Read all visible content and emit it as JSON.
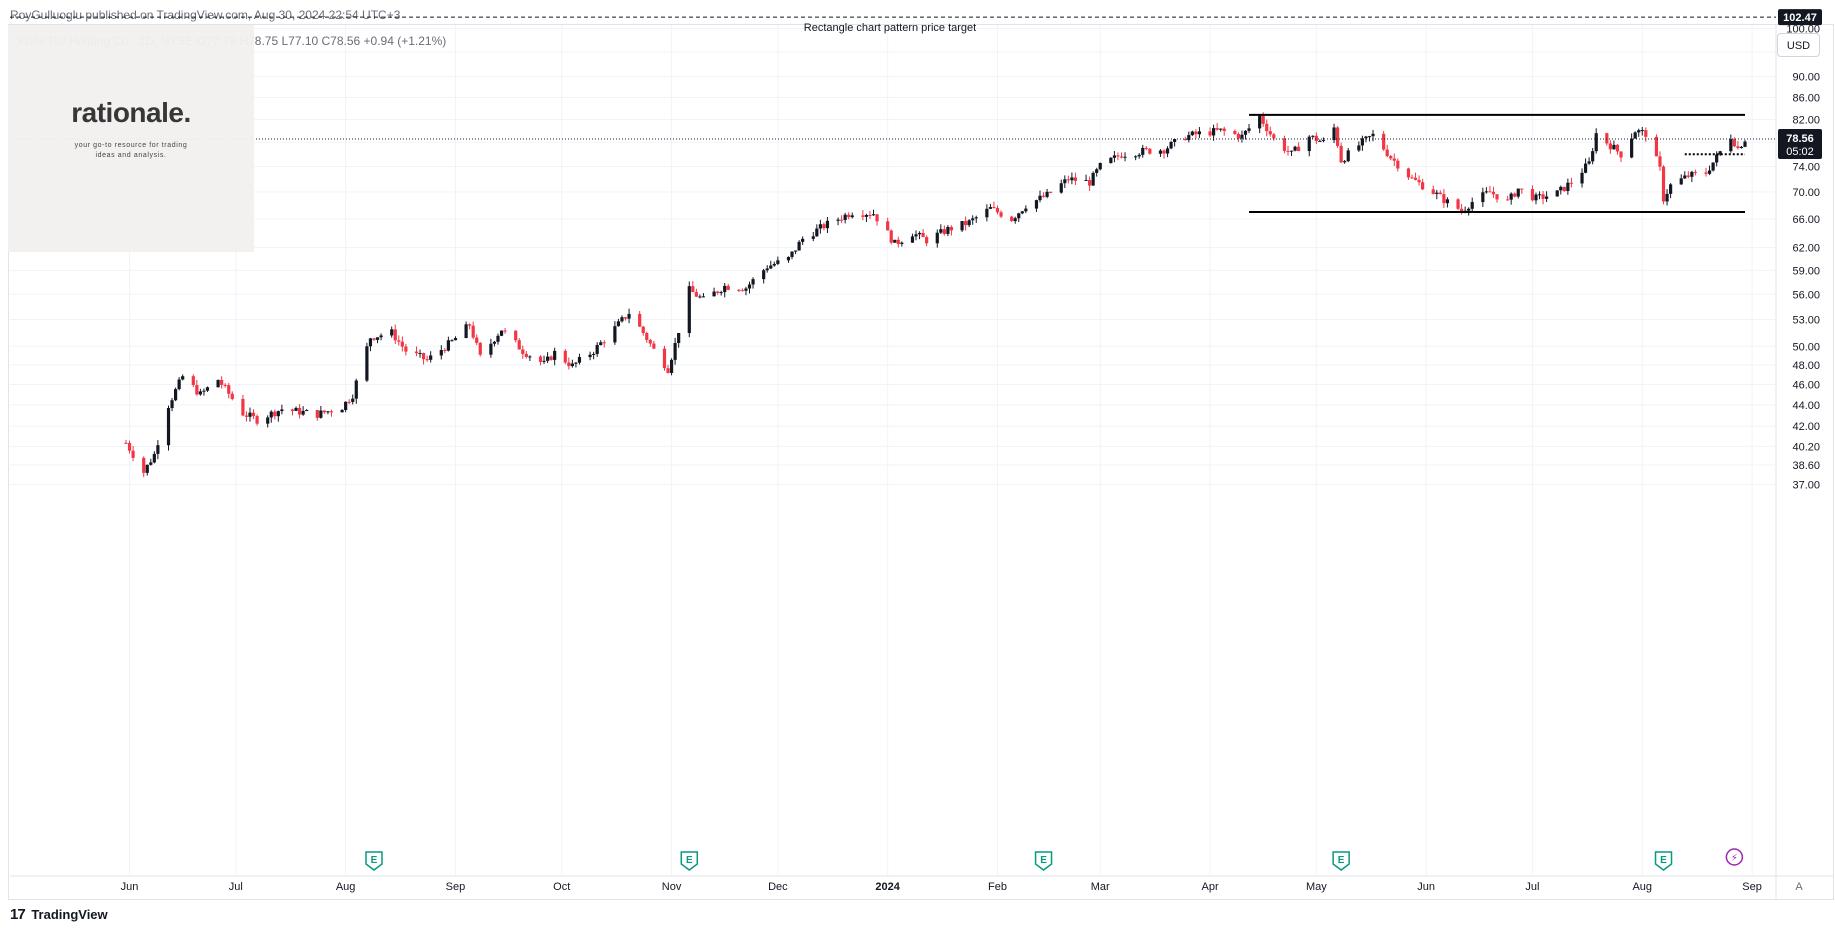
{
  "header": {
    "publisher": "RoyGulluoglu published on TradingView.com, Aug 30, 2024 22:54 UTC+3",
    "symbol_line": "Knife Riv Holding Co., 1D, NYSE  O77.79  H78.75  L77.10  C78.56  +0.94 (+1.21%)"
  },
  "watermark": {
    "logo": "rationale.",
    "tagline": "your go-to resource for trading ideas and analysis."
  },
  "toolbar": {
    "currency": "USD",
    "auto_scale": "A"
  },
  "footer": {
    "brand_mark": "17",
    "brand": "TradingView"
  },
  "colors": {
    "up": "#131722",
    "down": "#f23645",
    "grid": "#f0f3fa",
    "event": "#089981",
    "dividend": "#9c27b0"
  },
  "chart_data": {
    "type": "candlestick",
    "title": "Knife Riv Holding Co., 1D, NYSE",
    "ylim": [
      37,
      106
    ],
    "y_scale": "log",
    "y_ticks": [
      37.0,
      38.6,
      40.2,
      42.0,
      44.0,
      46.0,
      48.0,
      50.0,
      53.0,
      56.0,
      59.0,
      62.0,
      66.0,
      70.0,
      74.0,
      78.0,
      82.0,
      86.0,
      90.0,
      95.0,
      100.0
    ],
    "y_tick_labels": [
      "37.00",
      "38.60",
      "40.20",
      "42.00",
      "44.00",
      "46.00",
      "48.00",
      "50.00",
      "53.00",
      "56.00",
      "59.00",
      "62.00",
      "66.00",
      "70.00",
      "74.00",
      "78.00",
      "82.00",
      "86.00",
      "90.00",
      "95.00",
      "100.00"
    ],
    "x_ticks": [
      {
        "date": "2023-06-01",
        "label": "Jun",
        "bold": false
      },
      {
        "date": "2023-07-01",
        "label": "Jul",
        "bold": false
      },
      {
        "date": "2023-08-01",
        "label": "Aug",
        "bold": false
      },
      {
        "date": "2023-09-01",
        "label": "Sep",
        "bold": false
      },
      {
        "date": "2023-10-01",
        "label": "Oct",
        "bold": false
      },
      {
        "date": "2023-11-01",
        "label": "Nov",
        "bold": false
      },
      {
        "date": "2023-12-01",
        "label": "Dec",
        "bold": false
      },
      {
        "date": "2024-01-01",
        "label": "2024",
        "bold": true
      },
      {
        "date": "2024-02-01",
        "label": "Feb",
        "bold": false
      },
      {
        "date": "2024-03-01",
        "label": "Mar",
        "bold": false
      },
      {
        "date": "2024-04-01",
        "label": "Apr",
        "bold": false
      },
      {
        "date": "2024-05-01",
        "label": "May",
        "bold": false
      },
      {
        "date": "2024-06-01",
        "label": "Jun",
        "bold": false
      },
      {
        "date": "2024-07-01",
        "label": "Jul",
        "bold": false
      },
      {
        "date": "2024-08-01",
        "label": "Aug",
        "bold": false
      },
      {
        "date": "2024-09-01",
        "label": "Sep",
        "bold": false
      }
    ],
    "close_path": [
      [
        "2023-05-31",
        40.5
      ],
      [
        "2023-06-05",
        38.0
      ],
      [
        "2023-06-08",
        39.5
      ],
      [
        "2023-06-12",
        44.0
      ],
      [
        "2023-06-16",
        46.8
      ],
      [
        "2023-06-21",
        45.0
      ],
      [
        "2023-06-26",
        46.5
      ],
      [
        "2023-07-03",
        43.2
      ],
      [
        "2023-07-07",
        42.6
      ],
      [
        "2023-07-14",
        43.6
      ],
      [
        "2023-07-24",
        43.1
      ],
      [
        "2023-07-31",
        43.8
      ],
      [
        "2023-08-03",
        45.0
      ],
      [
        "2023-08-08",
        51.0
      ],
      [
        "2023-08-14",
        51.5
      ],
      [
        "2023-08-18",
        49.5
      ],
      [
        "2023-08-24",
        48.5
      ],
      [
        "2023-08-31",
        50.5
      ],
      [
        "2023-09-05",
        52.4
      ],
      [
        "2023-09-08",
        48.8
      ],
      [
        "2023-09-14",
        51.9
      ],
      [
        "2023-09-20",
        49.5
      ],
      [
        "2023-09-26",
        48.1
      ],
      [
        "2023-09-29",
        49.3
      ],
      [
        "2023-10-04",
        47.9
      ],
      [
        "2023-10-10",
        49.5
      ],
      [
        "2023-10-16",
        52.0
      ],
      [
        "2023-10-20",
        53.8
      ],
      [
        "2023-10-24",
        51.5
      ],
      [
        "2023-10-27",
        49.6
      ],
      [
        "2023-10-31",
        47.6
      ],
      [
        "2023-11-02",
        50.2
      ],
      [
        "2023-11-06",
        56.5
      ],
      [
        "2023-11-10",
        55.3
      ],
      [
        "2023-11-16",
        57.0
      ],
      [
        "2023-11-22",
        56.8
      ],
      [
        "2023-11-28",
        59.5
      ],
      [
        "2023-12-04",
        60.5
      ],
      [
        "2023-12-08",
        63.2
      ],
      [
        "2023-12-14",
        65.0
      ],
      [
        "2023-12-18",
        66.0
      ],
      [
        "2023-12-22",
        67.0
      ],
      [
        "2023-12-28",
        66.8
      ],
      [
        "2024-01-03",
        62.5
      ],
      [
        "2024-01-08",
        64.0
      ],
      [
        "2024-01-12",
        63.0
      ],
      [
        "2024-01-18",
        64.5
      ],
      [
        "2024-01-24",
        65.5
      ],
      [
        "2024-01-30",
        67.5
      ],
      [
        "2024-02-05",
        66.0
      ],
      [
        "2024-02-09",
        68.0
      ],
      [
        "2024-02-15",
        69.5
      ],
      [
        "2024-02-21",
        72.0
      ],
      [
        "2024-02-27",
        71.5
      ],
      [
        "2024-03-01",
        74.0
      ],
      [
        "2024-03-07",
        76.0
      ],
      [
        "2024-03-13",
        76.5
      ],
      [
        "2024-03-19",
        76.8
      ],
      [
        "2024-03-25",
        79.0
      ],
      [
        "2024-03-29",
        79.5
      ],
      [
        "2024-04-04",
        80.0
      ],
      [
        "2024-04-10",
        79.0
      ],
      [
        "2024-04-15",
        82.5
      ],
      [
        "2024-04-19",
        78.5
      ],
      [
        "2024-04-24",
        76.0
      ],
      [
        "2024-04-29",
        79.0
      ],
      [
        "2024-05-03",
        78.0
      ],
      [
        "2024-05-06",
        80.5
      ],
      [
        "2024-05-08",
        75.0
      ],
      [
        "2024-05-14",
        78.0
      ],
      [
        "2024-05-17",
        79.2
      ],
      [
        "2024-05-22",
        75.5
      ],
      [
        "2024-05-28",
        72.0
      ],
      [
        "2024-06-03",
        70.0
      ],
      [
        "2024-06-06",
        68.8
      ],
      [
        "2024-06-11",
        67.2
      ],
      [
        "2024-06-14",
        68.5
      ],
      [
        "2024-06-19",
        70.0
      ],
      [
        "2024-06-24",
        68.5
      ],
      [
        "2024-06-27",
        70.5
      ],
      [
        "2024-07-02",
        69.0
      ],
      [
        "2024-07-08",
        69.8
      ],
      [
        "2024-07-12",
        71.5
      ],
      [
        "2024-07-17",
        74.5
      ],
      [
        "2024-07-19",
        79.5
      ],
      [
        "2024-07-24",
        77.0
      ],
      [
        "2024-07-26",
        76.0
      ],
      [
        "2024-07-30",
        80.0
      ],
      [
        "2024-08-02",
        79.5
      ],
      [
        "2024-08-06",
        73.5
      ],
      [
        "2024-08-07",
        69.0
      ],
      [
        "2024-08-09",
        71.0
      ],
      [
        "2024-08-14",
        72.5
      ],
      [
        "2024-08-19",
        73.0
      ],
      [
        "2024-08-22",
        75.5
      ],
      [
        "2024-08-26",
        79.0
      ],
      [
        "2024-08-28",
        77.0
      ],
      [
        "2024-08-30",
        78.56
      ]
    ],
    "last_price": {
      "value": "78.56",
      "countdown": "05:02"
    },
    "target_price": "102.47",
    "annotations": [
      {
        "text": "Rectangle chart pattern price target",
        "price": 102.47
      }
    ],
    "rectangle": {
      "start": "2024-04-12",
      "end": "2024-08-30",
      "top": 82.8,
      "bottom": 67.0
    },
    "breakout_line": {
      "start": "2024-08-13",
      "end": "2024-08-30",
      "price": 76.0
    },
    "earnings_markers": [
      "2023-08-09",
      "2023-11-06",
      "2024-02-14",
      "2024-05-08",
      "2024-08-07"
    ],
    "earnings_glyph": "E",
    "dividend_markers": [
      "2024-08-27"
    ],
    "dividend_glyph": "⚡"
  }
}
